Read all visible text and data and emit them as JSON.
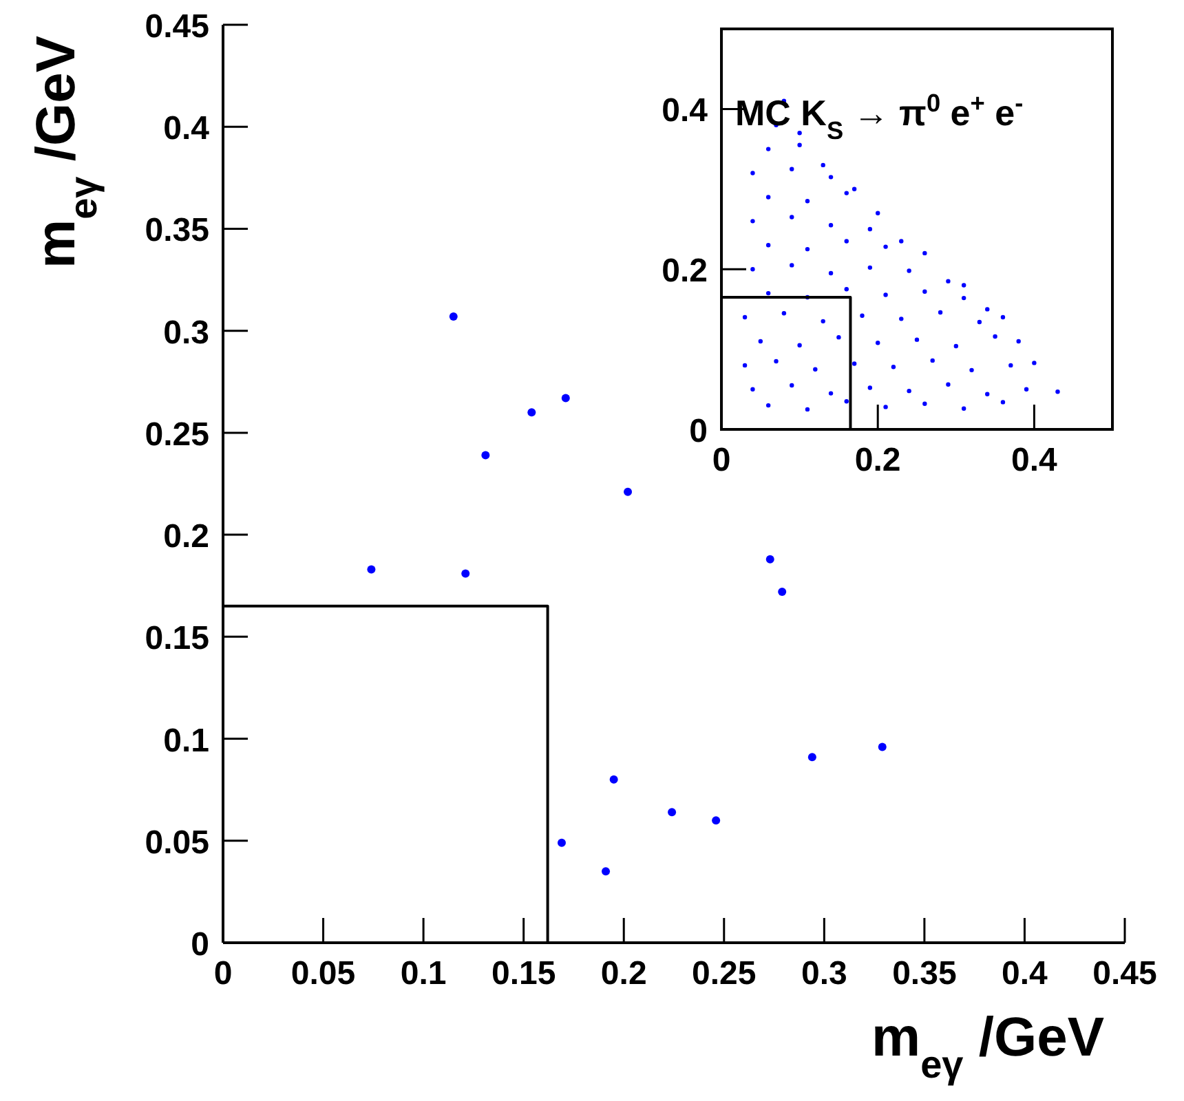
{
  "chart_data": [
    {
      "type": "scatter",
      "xlabel": "m$_{eγ}$ /GeV",
      "ylabel": "m$_{eγ}$ /GeV",
      "xlim": [
        0,
        0.45
      ],
      "ylim": [
        0,
        0.45
      ],
      "xticks": [
        0,
        0.05,
        0.1,
        0.15,
        0.2,
        0.25,
        0.3,
        0.35,
        0.4,
        0.45
      ],
      "yticks": [
        0,
        0.05,
        0.1,
        0.15,
        0.2,
        0.25,
        0.3,
        0.35,
        0.4,
        0.45
      ],
      "marker": "circle",
      "series": [
        {
          "color": "#0000ff",
          "x": [
            0.115,
            0.171,
            0.154,
            0.131,
            0.202,
            0.074,
            0.121,
            0.195,
            0.224,
            0.169,
            0.191,
            0.273,
            0.279,
            0.329,
            0.294,
            0.246
          ],
          "values": [
            0.307,
            0.267,
            0.26,
            0.239,
            0.221,
            0.183,
            0.181,
            0.08,
            0.064,
            0.049,
            0.035,
            0.188,
            0.172,
            0.096,
            0.091,
            0.06
          ]
        },
        {
          "type": "line",
          "color": "#000000",
          "marker": "none",
          "x": [
            0,
            0.162,
            0.162
          ],
          "values": [
            0.165,
            0.165,
            0
          ]
        }
      ]
    },
    {
      "type": "scatter",
      "title": "MC K$_{S}$ → π$^{0}$ e$^{+}$ e$^{-}$",
      "xlim": [
        0,
        0.5
      ],
      "ylim": [
        0,
        0.5
      ],
      "xticks": [
        0,
        0.2,
        0.4
      ],
      "yticks": [
        0,
        0.2,
        0.4
      ],
      "marker": "circle",
      "series": [
        {
          "color": "#0000ff",
          "x": [
            0.06,
            0.11,
            0.16,
            0.21,
            0.26,
            0.31,
            0.36,
            0.04,
            0.09,
            0.14,
            0.19,
            0.24,
            0.29,
            0.34,
            0.39,
            0.43,
            0.03,
            0.07,
            0.12,
            0.17,
            0.22,
            0.27,
            0.32,
            0.37,
            0.4,
            0.05,
            0.1,
            0.15,
            0.2,
            0.25,
            0.3,
            0.35,
            0.38,
            0.03,
            0.08,
            0.13,
            0.18,
            0.23,
            0.28,
            0.33,
            0.36,
            0.06,
            0.11,
            0.16,
            0.21,
            0.26,
            0.31,
            0.34,
            0.04,
            0.09,
            0.14,
            0.19,
            0.24,
            0.29,
            0.31,
            0.06,
            0.11,
            0.16,
            0.21,
            0.26,
            0.04,
            0.09,
            0.14,
            0.19,
            0.23,
            0.06,
            0.11,
            0.16,
            0.2,
            0.04,
            0.09,
            0.14,
            0.17,
            0.06,
            0.1,
            0.13,
            0.07,
            0.1,
            0.08
          ],
          "values": [
            0.03,
            0.025,
            0.035,
            0.028,
            0.032,
            0.026,
            0.034,
            0.05,
            0.055,
            0.045,
            0.052,
            0.048,
            0.056,
            0.044,
            0.05,
            0.047,
            0.08,
            0.085,
            0.075,
            0.082,
            0.078,
            0.086,
            0.074,
            0.08,
            0.083,
            0.11,
            0.105,
            0.115,
            0.108,
            0.112,
            0.104,
            0.116,
            0.11,
            0.14,
            0.145,
            0.135,
            0.142,
            0.138,
            0.146,
            0.134,
            0.14,
            0.17,
            0.165,
            0.175,
            0.168,
            0.172,
            0.164,
            0.15,
            0.2,
            0.205,
            0.195,
            0.202,
            0.198,
            0.185,
            0.18,
            0.23,
            0.225,
            0.235,
            0.228,
            0.22,
            0.26,
            0.265,
            0.255,
            0.25,
            0.235,
            0.29,
            0.285,
            0.295,
            0.27,
            0.32,
            0.325,
            0.315,
            0.3,
            0.35,
            0.355,
            0.33,
            0.38,
            0.37,
            0.41
          ]
        },
        {
          "type": "line",
          "color": "#000000",
          "marker": "none",
          "x": [
            0,
            0.165,
            0.165
          ],
          "values": [
            0.165,
            0.165,
            0
          ]
        }
      ]
    }
  ]
}
